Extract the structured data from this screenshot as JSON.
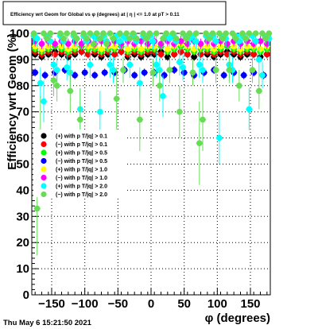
{
  "chart_data": {
    "type": "scatter",
    "title": "Efficiency wrt Geom for Global vs φ (degrees) at | η | <= 1.0 at pT > 0.11",
    "xlabel": "φ (degrees)",
    "ylabel": "Efficiency wrt Geom (%)",
    "xlim": [
      -180,
      180
    ],
    "ylim": [
      0,
      100
    ],
    "xticks": [
      -150,
      -100,
      -50,
      0,
      50,
      100,
      150
    ],
    "xtick_labels": [
      "−150",
      "−100",
      "−50",
      "0",
      "50",
      "100",
      "150"
    ],
    "yticks": [
      0,
      10,
      20,
      30,
      40,
      50,
      60,
      70,
      80,
      90,
      100
    ],
    "ytick_labels": [
      "0",
      "10",
      "20",
      "30",
      "40",
      "50",
      "60",
      "70",
      "80",
      "90",
      "100"
    ],
    "grid": true,
    "legend_position": "middle-left",
    "footer": "Thu May  6 15:21:50 2021",
    "series": [
      {
        "name": "(+) with p T/|q| > 0.1",
        "color": "#000000",
        "x": [
          -175,
          -165,
          -155,
          -145,
          -135,
          -125,
          -115,
          -105,
          -95,
          -85,
          -75,
          -65,
          -55,
          -45,
          -35,
          -25,
          -15,
          -5,
          5,
          15,
          25,
          35,
          45,
          55,
          65,
          75,
          85,
          95,
          105,
          115,
          125,
          135,
          145,
          155,
          165,
          175
        ],
        "y": [
          92,
          91,
          92,
          93,
          92,
          91,
          92,
          93,
          92,
          92,
          91,
          92,
          92,
          93,
          91,
          92,
          91,
          92,
          92,
          93,
          91,
          92,
          93,
          92,
          91,
          92,
          92,
          91,
          92,
          93,
          92,
          91,
          92,
          92,
          91,
          92
        ],
        "err": [
          1.5,
          1.5,
          1.5,
          1.5,
          1.5,
          1.5,
          1.5,
          1.5,
          1.5,
          1.5,
          1.5,
          1.5,
          1.5,
          1.5,
          1.5,
          1.5,
          1.5,
          1.5,
          1.5,
          1.5,
          1.5,
          1.5,
          1.5,
          1.5,
          1.5,
          1.5,
          1.5,
          1.5,
          1.5,
          1.5,
          1.5,
          1.5,
          1.5,
          1.5,
          1.5,
          1.5
        ]
      },
      {
        "name": "(−) with p T/|q| > 0.1",
        "color": "#ff0000",
        "x": [
          -175,
          -165,
          -155,
          -145,
          -135,
          -125,
          -115,
          -105,
          -95,
          -85,
          -75,
          -65,
          -55,
          -45,
          -35,
          -25,
          -15,
          -5,
          5,
          15,
          25,
          35,
          45,
          55,
          65,
          75,
          85,
          95,
          105,
          115,
          125,
          135,
          145,
          155,
          165,
          175
        ],
        "y": [
          93,
          92,
          93,
          92,
          93,
          92,
          93,
          93,
          92,
          93,
          92,
          93,
          92,
          93,
          92,
          93,
          92,
          93,
          93,
          92,
          93,
          92,
          93,
          92,
          93,
          92,
          93,
          92,
          93,
          92,
          93,
          92,
          93,
          92,
          93,
          92
        ],
        "err": [
          1.5,
          1.5,
          1.5,
          1.5,
          1.5,
          1.5,
          1.5,
          1.5,
          1.5,
          1.5,
          1.5,
          1.5,
          1.5,
          1.5,
          1.5,
          1.5,
          1.5,
          1.5,
          1.5,
          1.5,
          1.5,
          1.5,
          1.5,
          1.5,
          1.5,
          1.5,
          1.5,
          1.5,
          1.5,
          1.5,
          1.5,
          1.5,
          1.5,
          1.5,
          1.5,
          1.5
        ]
      },
      {
        "name": "(+) with p T/|q| > 0.5",
        "color": "#00ff00",
        "x": [
          -175,
          -165,
          -155,
          -145,
          -135,
          -125,
          -115,
          -105,
          -95,
          -85,
          -75,
          -65,
          -55,
          -45,
          -35,
          -25,
          -15,
          -5,
          5,
          15,
          25,
          35,
          45,
          55,
          65,
          75,
          85,
          95,
          105,
          115,
          125,
          135,
          145,
          155,
          165,
          175
        ],
        "y": [
          94,
          93,
          94,
          95,
          94,
          93,
          94,
          95,
          94,
          94,
          93,
          94,
          94,
          95,
          93,
          94,
          93,
          94,
          94,
          95,
          93,
          94,
          95,
          94,
          93,
          94,
          94,
          93,
          94,
          95,
          94,
          93,
          94,
          94,
          93,
          94
        ],
        "err": [
          1.5,
          1.5,
          1.5,
          1.5,
          1.5,
          1.5,
          1.5,
          1.5,
          1.5,
          1.5,
          1.5,
          1.5,
          1.5,
          1.5,
          1.5,
          1.5,
          1.5,
          1.5,
          1.5,
          1.5,
          1.5,
          1.5,
          1.5,
          1.5,
          1.5,
          1.5,
          1.5,
          1.5,
          1.5,
          1.5,
          1.5,
          1.5,
          1.5,
          1.5,
          1.5,
          1.5
        ]
      },
      {
        "name": "(−) with p T/|q| > 0.5",
        "color": "#0000ff",
        "x": [
          -175,
          -160,
          -145,
          -130,
          -115,
          -100,
          -85,
          -70,
          -55,
          -40,
          -25,
          -10,
          5,
          20,
          35,
          50,
          65,
          80,
          95,
          110,
          125,
          140,
          155,
          170
        ],
        "y": [
          85,
          84,
          85,
          86,
          84,
          85,
          84,
          85,
          85,
          86,
          84,
          85,
          85,
          84,
          86,
          85,
          84,
          85,
          86,
          84,
          85,
          84,
          85,
          84
        ],
        "err": [
          1.5,
          1.5,
          1.5,
          1.5,
          1.5,
          1.5,
          1.5,
          1.5,
          1.5,
          1.5,
          1.5,
          1.5,
          1.5,
          1.5,
          1.5,
          1.5,
          1.5,
          1.5,
          1.5,
          1.5,
          1.5,
          1.5,
          1.5,
          1.5
        ]
      },
      {
        "name": "(+) with p T/|q| > 1.0",
        "color": "#ffff00",
        "x": [
          -175,
          -165,
          -155,
          -145,
          -135,
          -125,
          -115,
          -105,
          -95,
          -85,
          -75,
          -65,
          -55,
          -45,
          -35,
          -25,
          -15,
          -5,
          5,
          15,
          25,
          35,
          45,
          55,
          65,
          75,
          85,
          95,
          105,
          115,
          125,
          135,
          145,
          155,
          165,
          175
        ],
        "y": [
          95,
          94,
          95,
          96,
          95,
          94,
          95,
          96,
          95,
          95,
          94,
          95,
          95,
          96,
          94,
          95,
          94,
          95,
          95,
          96,
          94,
          95,
          96,
          95,
          94,
          95,
          95,
          94,
          95,
          96,
          95,
          94,
          95,
          95,
          94,
          95
        ],
        "err": [
          2,
          2,
          2,
          2,
          2,
          2,
          2,
          2,
          2,
          2,
          2,
          2,
          2,
          2,
          2,
          2,
          2,
          2,
          2,
          2,
          2,
          2,
          2,
          2,
          2,
          2,
          2,
          2,
          2,
          2,
          2,
          2,
          2,
          2,
          2,
          2
        ]
      },
      {
        "name": "(−) with p T/|q| > 1.0",
        "color": "#ff00ff",
        "x": [
          -175,
          -165,
          -155,
          -145,
          -135,
          -125,
          -115,
          -105,
          -95,
          -85,
          -75,
          -65,
          -55,
          -45,
          -35,
          -25,
          -15,
          -5,
          5,
          15,
          25,
          35,
          45,
          55,
          65,
          75,
          85,
          95,
          105,
          115,
          125,
          135,
          145,
          155,
          165,
          175
        ],
        "y": [
          97,
          96,
          97,
          96,
          97,
          96,
          97,
          96,
          97,
          96,
          97,
          96,
          97,
          96,
          97,
          96,
          97,
          96,
          97,
          96,
          97,
          96,
          97,
          96,
          97,
          96,
          97,
          96,
          97,
          96,
          97,
          96,
          97,
          96,
          97,
          96
        ],
        "err": [
          2,
          2,
          2,
          2,
          2,
          2,
          2,
          2,
          2,
          2,
          2,
          2,
          2,
          2,
          2,
          2,
          2,
          2,
          2,
          2,
          2,
          2,
          2,
          2,
          2,
          2,
          2,
          2,
          2,
          2,
          2,
          2,
          2,
          2,
          2,
          2
        ]
      },
      {
        "name": "(+) with p T/|q| > 2.0",
        "color": "#00ffff",
        "x": [
          -177,
          -172,
          -167,
          -162,
          -157,
          -152,
          -147,
          -142,
          -137,
          -132,
          -127,
          -122,
          -117,
          -112,
          -107,
          -102,
          -97,
          -92,
          -87,
          -82,
          -77,
          -72,
          -67,
          -62,
          -57,
          -52,
          -47,
          -42,
          -37,
          -32,
          -27,
          -22,
          -17,
          -12,
          -7,
          -2,
          3,
          8,
          13,
          18,
          23,
          28,
          33,
          38,
          43,
          48,
          53,
          58,
          63,
          68,
          73,
          78,
          83,
          88,
          93,
          98,
          103,
          108,
          113,
          118,
          123,
          128,
          133,
          138,
          143,
          148,
          153,
          158,
          163,
          168,
          173,
          178
        ],
        "y": [
          99,
          98,
          81,
          74,
          99,
          97,
          88,
          86,
          99,
          97,
          87,
          85,
          99,
          98,
          71,
          99,
          97,
          88,
          99,
          98,
          70,
          99,
          97,
          88,
          86,
          99,
          97,
          99,
          98,
          88,
          99,
          97,
          81,
          99,
          98,
          99,
          97,
          88,
          86,
          76,
          99,
          98,
          99,
          97,
          89,
          87,
          99,
          98,
          99,
          97,
          88,
          86,
          99,
          98,
          99,
          97,
          60,
          99,
          98,
          88,
          86,
          99,
          97,
          99,
          98,
          71,
          99,
          97,
          90,
          84,
          99,
          98
        ],
        "err": [
          3,
          3,
          6,
          8,
          3,
          3,
          5,
          5,
          3,
          3,
          5,
          5,
          3,
          3,
          8,
          3,
          3,
          5,
          3,
          3,
          8,
          3,
          3,
          5,
          5,
          3,
          3,
          3,
          3,
          5,
          3,
          3,
          6,
          3,
          3,
          3,
          3,
          5,
          5,
          8,
          3,
          3,
          3,
          3,
          5,
          5,
          3,
          3,
          3,
          3,
          5,
          5,
          3,
          3,
          3,
          3,
          10,
          3,
          3,
          5,
          5,
          3,
          3,
          3,
          3,
          8,
          3,
          3,
          5,
          5,
          3,
          3
        ]
      },
      {
        "name": "(−) with p T/|q| > 2.0",
        "color": "#66dd55",
        "x": [
          -177,
          -172,
          -167,
          -162,
          -157,
          -152,
          -147,
          -142,
          -137,
          -132,
          -127,
          -122,
          -117,
          -112,
          -107,
          -102,
          -97,
          -92,
          -87,
          -82,
          -77,
          -72,
          -67,
          -62,
          -57,
          -52,
          -47,
          -42,
          -37,
          -32,
          -27,
          -22,
          -17,
          -12,
          -7,
          -2,
          3,
          8,
          13,
          18,
          23,
          28,
          33,
          38,
          43,
          48,
          53,
          58,
          63,
          68,
          73,
          78,
          83,
          88,
          93,
          98,
          103,
          108,
          113,
          118,
          123,
          128,
          133,
          138,
          143,
          148,
          153,
          158,
          163,
          168,
          173,
          178
        ],
        "y": [
          100,
          33,
          62,
          100,
          98,
          100,
          82,
          80,
          100,
          98,
          100,
          78,
          100,
          98,
          67,
          100,
          98,
          100,
          96,
          100,
          98,
          100,
          96,
          100,
          98,
          75,
          100,
          86,
          100,
          98,
          100,
          98,
          67,
          100,
          98,
          100,
          85,
          100,
          80,
          98,
          100,
          86,
          100,
          98,
          70,
          100,
          98,
          100,
          85,
          100,
          58,
          67,
          100,
          98,
          100,
          86,
          100,
          98,
          100,
          86,
          100,
          98,
          80,
          100,
          98,
          100,
          86,
          100,
          78,
          100,
          98,
          100
        ],
        "err": [
          2,
          18,
          14,
          2,
          2,
          2,
          6,
          6,
          2,
          2,
          2,
          8,
          2,
          2,
          12,
          2,
          2,
          2,
          3,
          2,
          2,
          2,
          3,
          2,
          2,
          12,
          2,
          5,
          2,
          2,
          2,
          2,
          12,
          2,
          2,
          2,
          5,
          2,
          6,
          2,
          2,
          5,
          2,
          2,
          10,
          2,
          2,
          2,
          5,
          2,
          16,
          12,
          2,
          2,
          2,
          5,
          2,
          2,
          2,
          5,
          2,
          2,
          6,
          2,
          2,
          2,
          5,
          2,
          7,
          2,
          2,
          2
        ]
      }
    ]
  }
}
